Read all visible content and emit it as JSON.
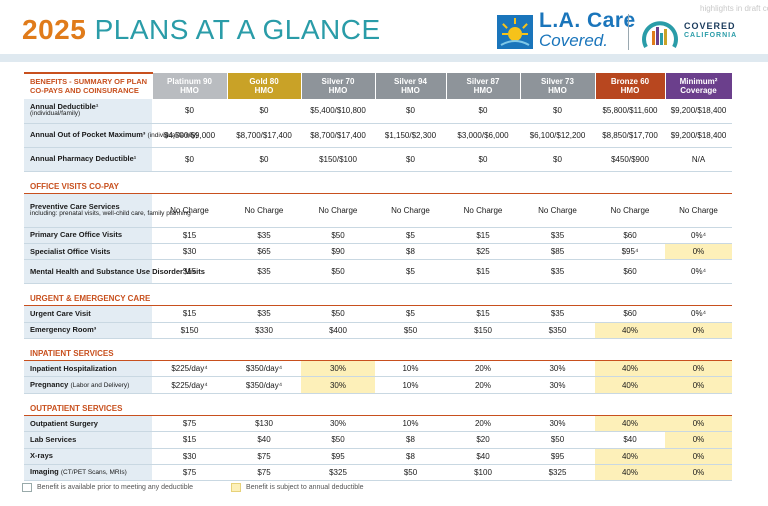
{
  "header": {
    "year": "2025",
    "title_rest": "PLANS AT A GLANCE",
    "brand_line1": "L.A. Care",
    "brand_line2": "Covered.",
    "partner_line1": "COVERED",
    "partner_line2": "CALIFORNIA",
    "ghost_text": "highlights in draft contr"
  },
  "table": {
    "corner_label": "BENEFITS - SUMMARY OF PLAN CO-PAYS AND COINSURANCE",
    "plans": [
      {
        "name": "Platinum 90",
        "type": "HMO"
      },
      {
        "name": "Gold 80",
        "type": "HMO"
      },
      {
        "name": "Silver 70",
        "type": "HMO"
      },
      {
        "name": "Silver 94",
        "type": "HMO"
      },
      {
        "name": "Silver 87",
        "type": "HMO"
      },
      {
        "name": "Silver 73",
        "type": "HMO"
      },
      {
        "name": "Bronze 60",
        "type": "HMO"
      },
      {
        "name": "Minimum²",
        "type": "Coverage"
      }
    ],
    "rows_top": [
      {
        "label": "Annual Deductible¹",
        "sub": "(individual/family)",
        "values": [
          "$0",
          "$0",
          "$5,400/$10,800",
          "$0",
          "$0",
          "$0",
          "$5,800/$11,600",
          "$9,200/$18,400"
        ]
      },
      {
        "label": "Annual Out of Pocket Maximum³",
        "note": "(individual/family)",
        "values": [
          "$4,500/$9,000",
          "$8,700/$17,400",
          "$8,700/$17,400",
          "$1,150/$2,300",
          "$3,000/$6,000",
          "$6,100/$12,200",
          "$8,850/$17,700",
          "$9,200/$18,400"
        ]
      },
      {
        "label": "Annual Pharmacy Deductible¹",
        "values": [
          "$0",
          "$0",
          "$150/$100",
          "$0",
          "$0",
          "$0",
          "$450/$900",
          "N/A"
        ]
      }
    ],
    "sec_office": "OFFICE VISITS CO-PAY",
    "rows_office": [
      {
        "label": "Preventive Care Services",
        "sub": "including: prenatal visits, well-child care, family planning",
        "values": [
          "No Charge",
          "No Charge",
          "No Charge",
          "No Charge",
          "No Charge",
          "No Charge",
          "No Charge",
          "No Charge"
        ]
      },
      {
        "label": "Primary Care Office Visits",
        "values": [
          "$15",
          "$35",
          "$50",
          "$5",
          "$15",
          "$35",
          "$60",
          "0%⁴"
        ]
      },
      {
        "label": "Specialist Office Visits",
        "values": [
          "$30",
          "$65",
          "$90",
          "$8",
          "$25",
          "$85",
          "$95⁴",
          "0%"
        ]
      },
      {
        "label": "Mental Health and Substance Use Disorder Visits",
        "values": [
          "$15",
          "$35",
          "$50",
          "$5",
          "$15",
          "$35",
          "$60",
          "0%⁴"
        ]
      }
    ],
    "sec_urgent": "URGENT & EMERGENCY CARE",
    "rows_urgent": [
      {
        "label": "Urgent Care Visit",
        "values": [
          "$15",
          "$35",
          "$50",
          "$5",
          "$15",
          "$35",
          "$60",
          "0%⁴"
        ]
      },
      {
        "label": "Emergency Room³",
        "values": [
          "$150",
          "$330",
          "$400",
          "$50",
          "$150",
          "$350",
          "40%",
          "0%"
        ]
      }
    ],
    "sec_inpatient": "INPATIENT SERVICES",
    "rows_inpatient": [
      {
        "label": "Inpatient Hospitalization",
        "values": [
          "$225/day⁴",
          "$350/day⁴",
          "30%",
          "10%",
          "20%",
          "30%",
          "40%",
          "0%"
        ]
      },
      {
        "label": "Pregnancy",
        "note": "(Labor and Delivery)",
        "values": [
          "$225/day⁴",
          "$350/day⁴",
          "30%",
          "10%",
          "20%",
          "30%",
          "40%",
          "0%"
        ]
      }
    ],
    "sec_outpatient": "OUTPATIENT SERVICES",
    "rows_outpatient": [
      {
        "label": "Outpatient Surgery",
        "values": [
          "$75",
          "$130",
          "30%",
          "10%",
          "20%",
          "30%",
          "40%",
          "0%"
        ]
      },
      {
        "label": "Lab Services",
        "values": [
          "$15",
          "$40",
          "$50",
          "$8",
          "$20",
          "$50",
          "$40",
          "0%"
        ]
      },
      {
        "label": "X-rays",
        "values": [
          "$30",
          "$75",
          "$95",
          "$8",
          "$40",
          "$95",
          "40%",
          "0%"
        ]
      },
      {
        "label": "Imaging",
        "note": "(CT/PET Scans, MRIs)",
        "values": [
          "$75",
          "$75",
          "$325",
          "$50",
          "$100",
          "$325",
          "40%",
          "0%"
        ]
      }
    ]
  },
  "legend": {
    "item1": "Benefit is available prior to meeting any deductible",
    "item2": "Benefit is subject to annual deductible"
  },
  "colors": {
    "title_year": "#e07b1a",
    "title_text": "#2a9ca8",
    "section": "#c8501e",
    "gold": "#c9a227",
    "bronze": "#b8471f",
    "minimum": "#6b3f8c",
    "deductible_highlight": "#fdf0b9"
  }
}
